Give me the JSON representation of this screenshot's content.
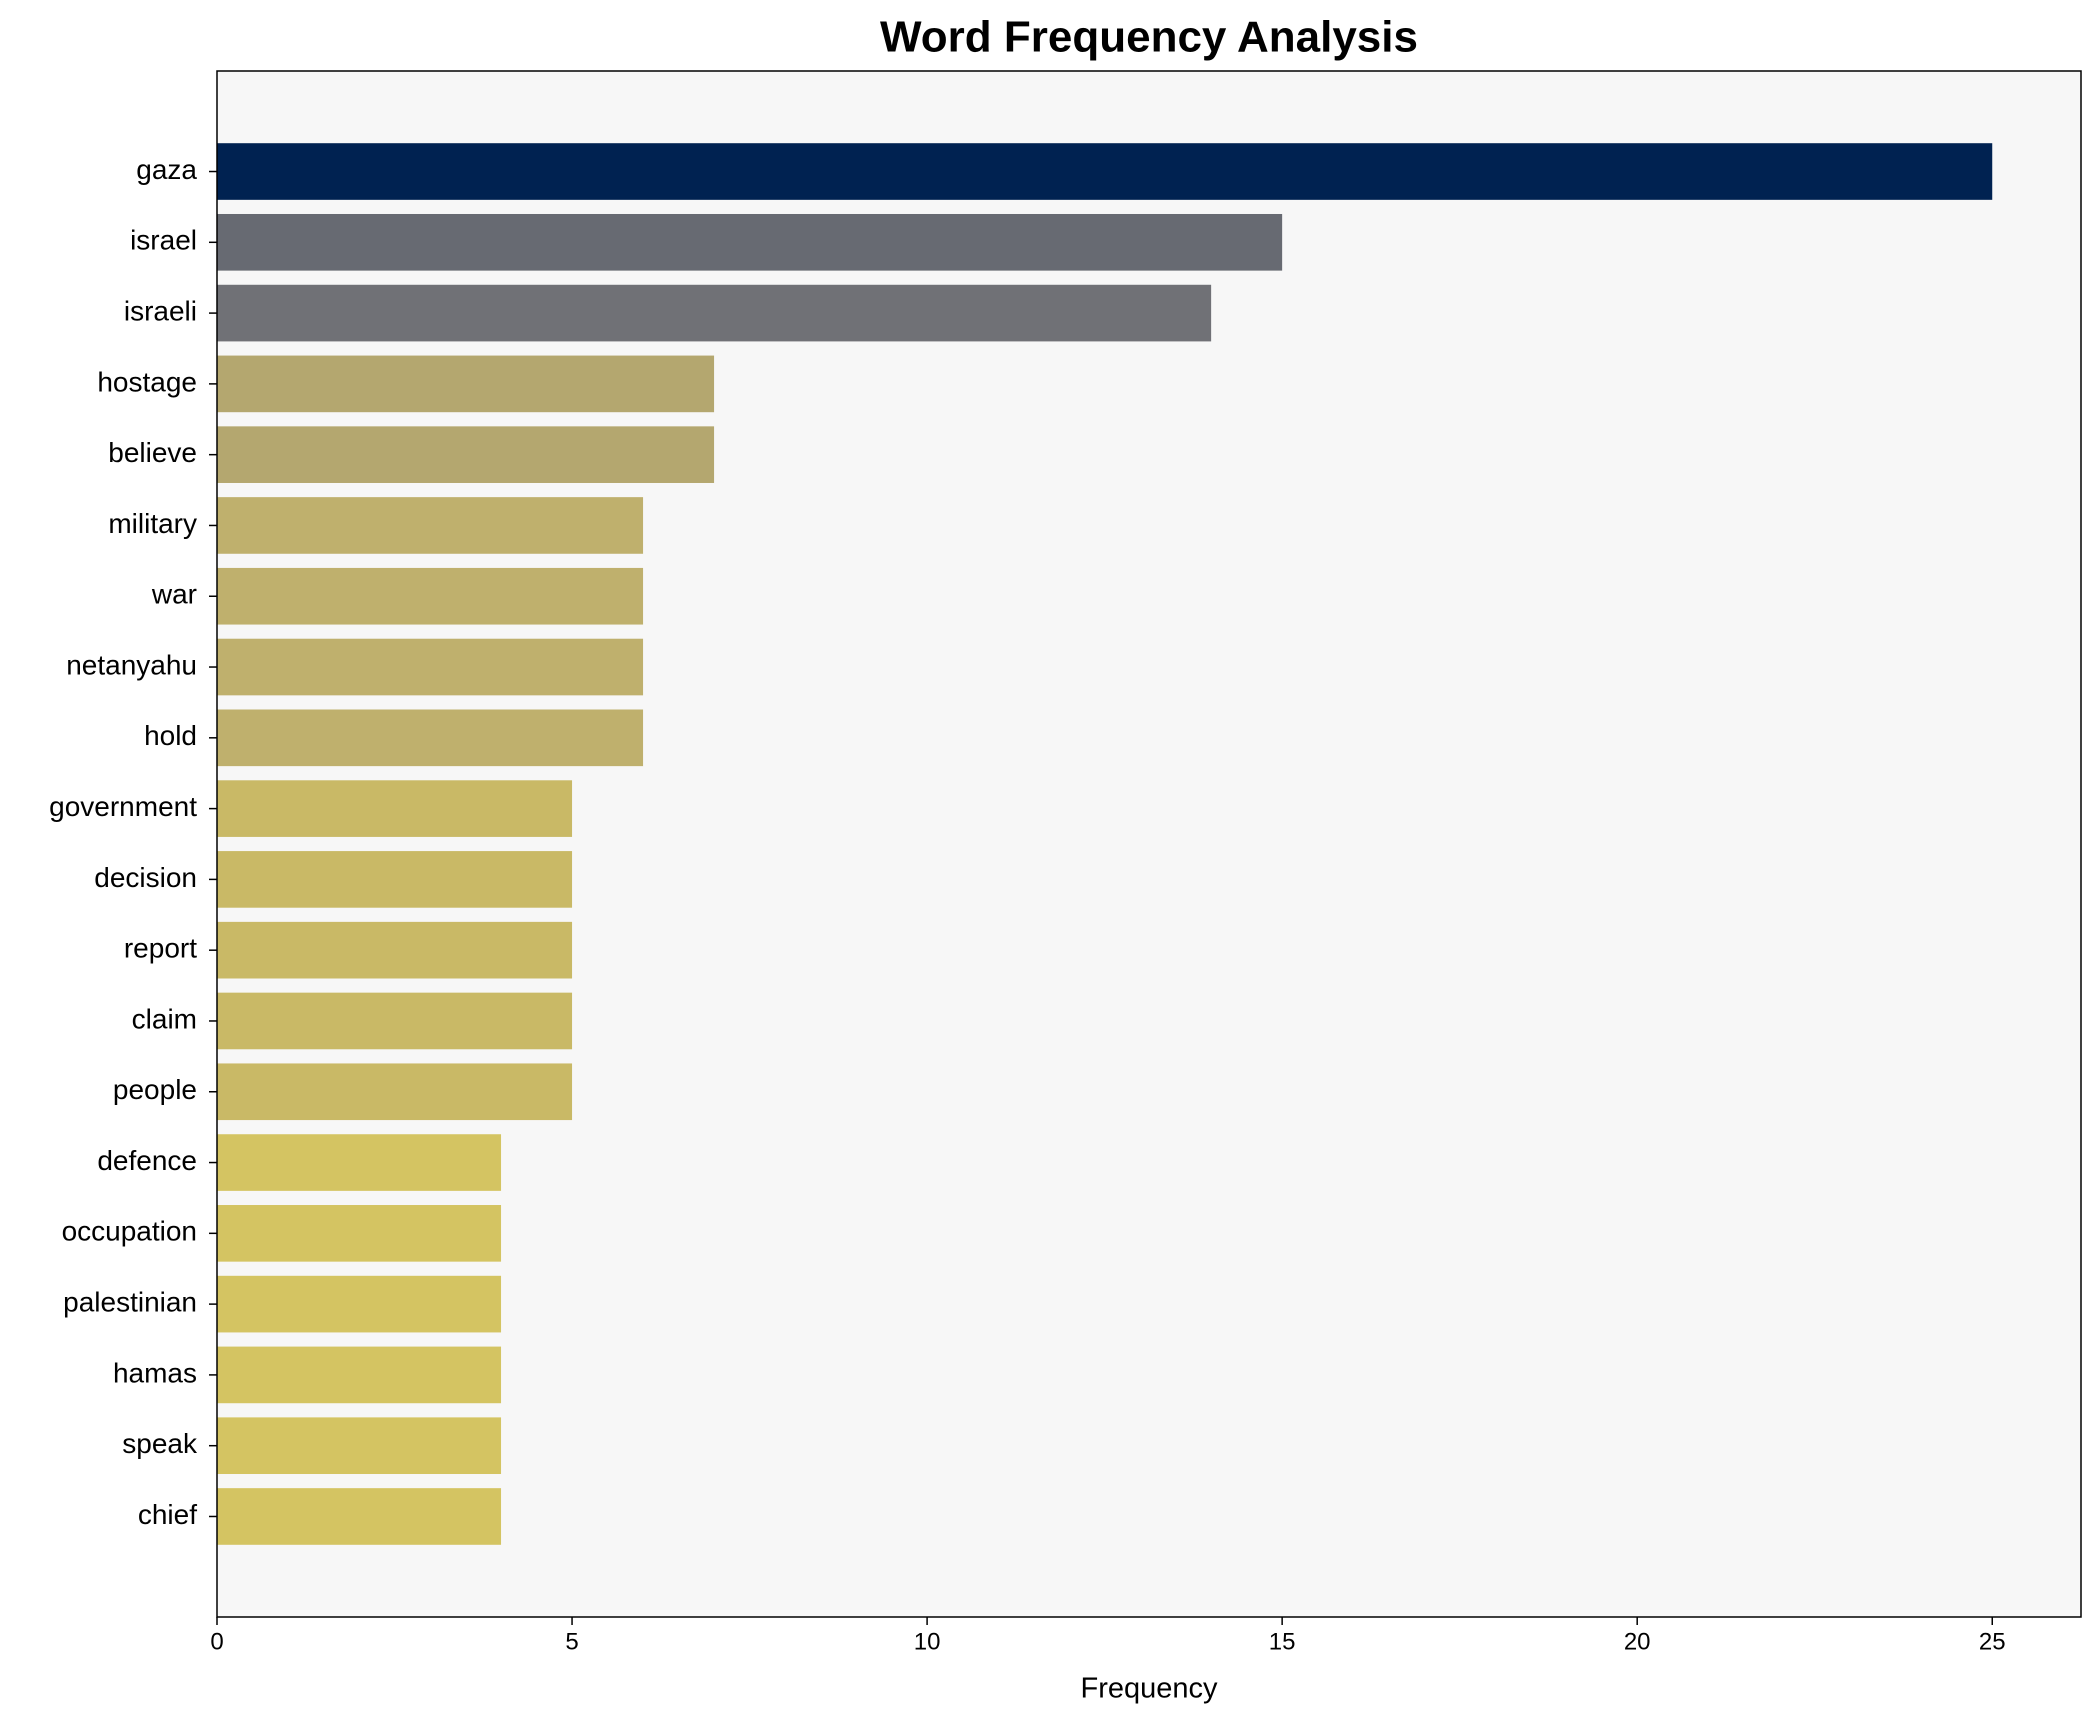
{
  "chart_data": {
    "type": "barh",
    "title": "Word Frequency Analysis",
    "xlabel": "Frequency",
    "categories": [
      "gaza",
      "israel",
      "israeli",
      "hostage",
      "believe",
      "military",
      "war",
      "netanyahu",
      "hold",
      "government",
      "decision",
      "report",
      "claim",
      "people",
      "defence",
      "occupation",
      "palestinian",
      "hamas",
      "speak",
      "chief"
    ],
    "values": [
      25,
      15,
      14,
      7,
      7,
      6,
      6,
      6,
      6,
      5,
      5,
      5,
      5,
      5,
      4,
      4,
      4,
      4,
      4,
      4
    ],
    "colors": [
      "#002251",
      "#676a72",
      "#707176",
      "#b4a76f",
      "#b4a76f",
      "#bfb06d",
      "#bfb06d",
      "#bfb06d",
      "#bfb06d",
      "#c9b966",
      "#c9b966",
      "#c9b966",
      "#c9b966",
      "#c9b966",
      "#d4c462",
      "#d4c462",
      "#d4c462",
      "#d4c462",
      "#d4c462",
      "#d4c462"
    ],
    "xlim": [
      0,
      26.25
    ],
    "xticks": [
      0,
      5,
      10,
      15,
      20,
      25
    ]
  }
}
